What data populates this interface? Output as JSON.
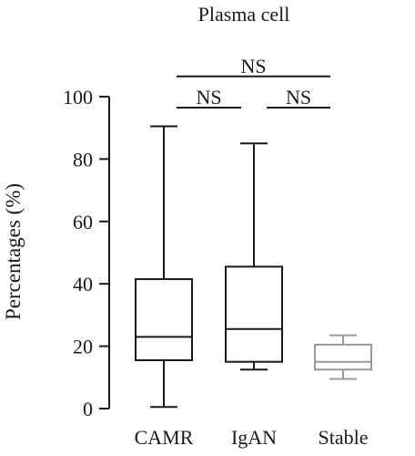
{
  "chart_data": {
    "type": "box",
    "title": "Plasma cell",
    "xlabel": "",
    "ylabel": "Percentages (%)",
    "ylim": [
      0,
      100
    ],
    "yticks": [
      0,
      20,
      40,
      60,
      80,
      100
    ],
    "categories": [
      "CAMR",
      "IgAN",
      "Stable"
    ],
    "boxes": [
      {
        "name": "CAMR",
        "min": 0.5,
        "q1": 15.5,
        "median": 23,
        "q3": 41.5,
        "max": 90.5,
        "color": "#1a1a1a"
      },
      {
        "name": "IgAN",
        "min": 12.5,
        "q1": 15,
        "median": 25.5,
        "q3": 45.5,
        "max": 85,
        "color": "#1a1a1a"
      },
      {
        "name": "Stable",
        "min": 9.5,
        "q1": 12.5,
        "median": 15,
        "q3": 20.5,
        "max": 23.5,
        "color": "#999999"
      }
    ],
    "comparisons": [
      {
        "from": 0,
        "to": 1,
        "label": "NS",
        "y": 96.5
      },
      {
        "from": 0,
        "to": 2,
        "label": "NS",
        "y": 106.5
      },
      {
        "from": 1,
        "to": 2,
        "label": "NS",
        "y": 96.5
      }
    ],
    "grid": false,
    "legend": "none"
  }
}
